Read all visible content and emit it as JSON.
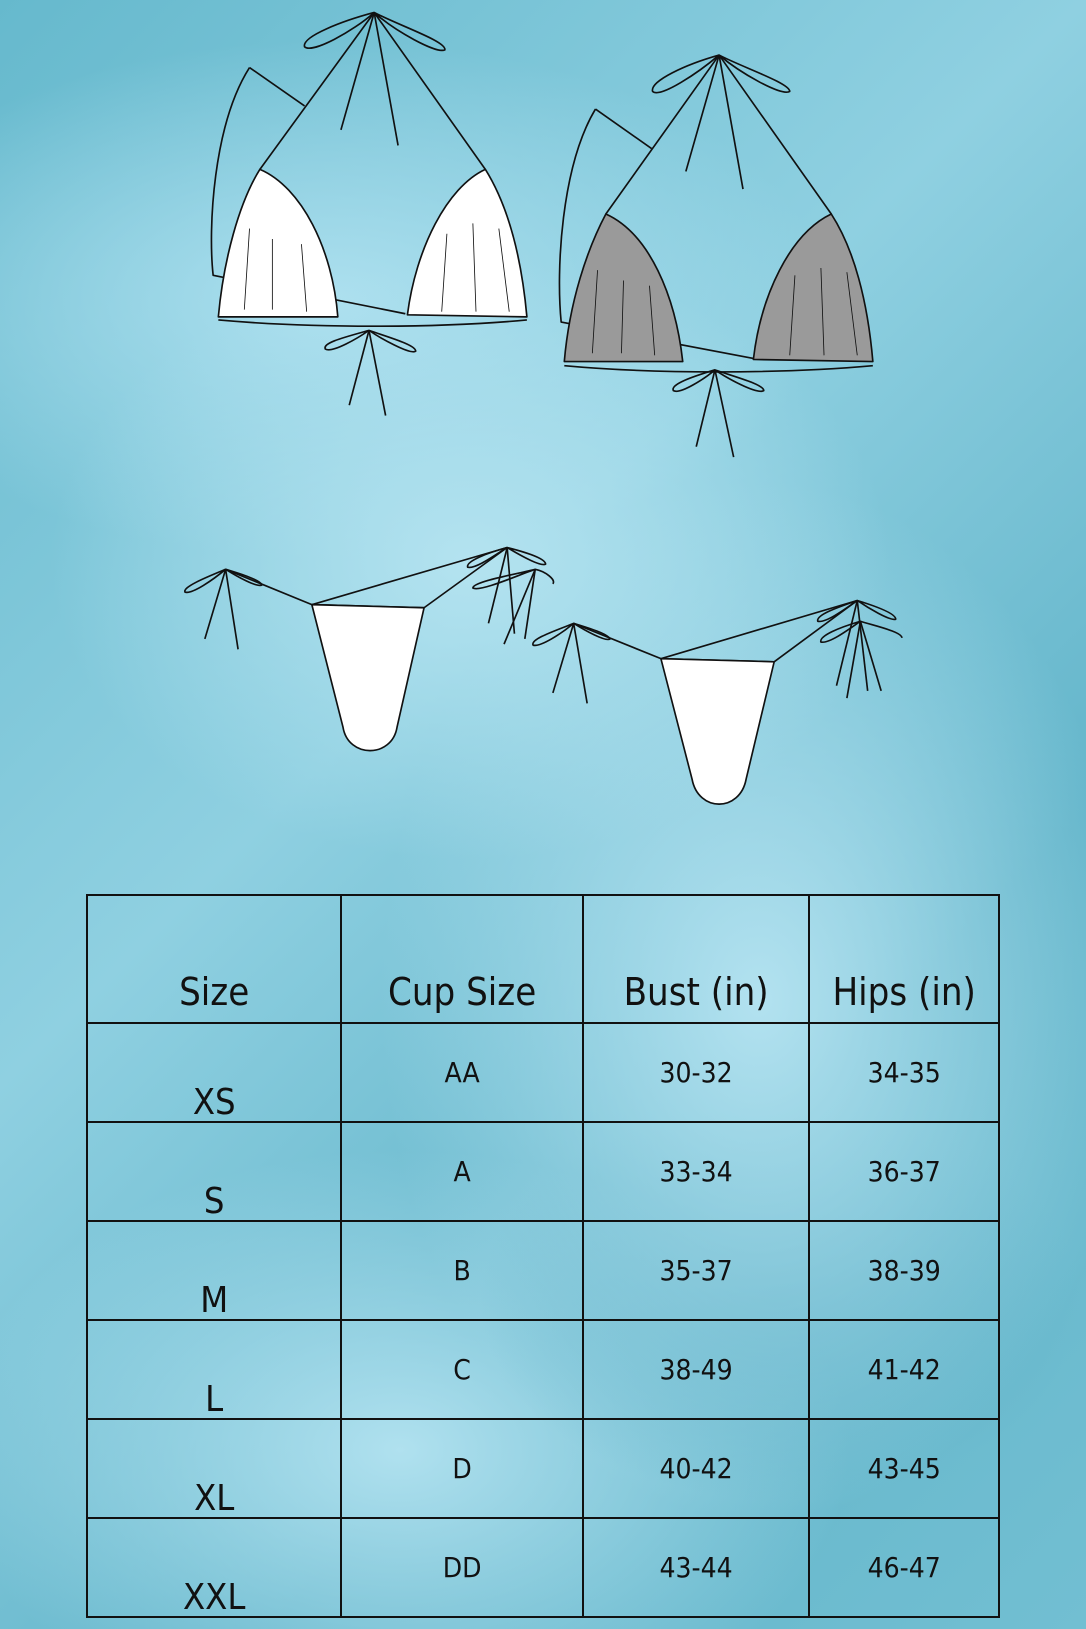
{
  "illustrations": [
    "bikini-top-white-cups",
    "bikini-top-grey-cups",
    "bikini-bottom-front",
    "bikini-bottom-back"
  ],
  "colors": {
    "background": "#7cc6d8",
    "cup_white": "#ffffff",
    "cup_grey": "#9a9a9a",
    "line": "#111111"
  },
  "size_table": {
    "headers": [
      "Size",
      "Cup Size",
      "Bust (in)",
      "Hips (in)"
    ],
    "rows": [
      [
        "XS",
        "AA",
        "30-32",
        "34-35"
      ],
      [
        "S",
        "A",
        "33-34",
        "36-37"
      ],
      [
        "M",
        "B",
        "35-37",
        "38-39"
      ],
      [
        "L",
        "C",
        "38-49",
        "41-42"
      ],
      [
        "XL",
        "D",
        "40-42",
        "43-45"
      ],
      [
        "XXL",
        "DD",
        "43-44",
        "46-47"
      ]
    ]
  }
}
